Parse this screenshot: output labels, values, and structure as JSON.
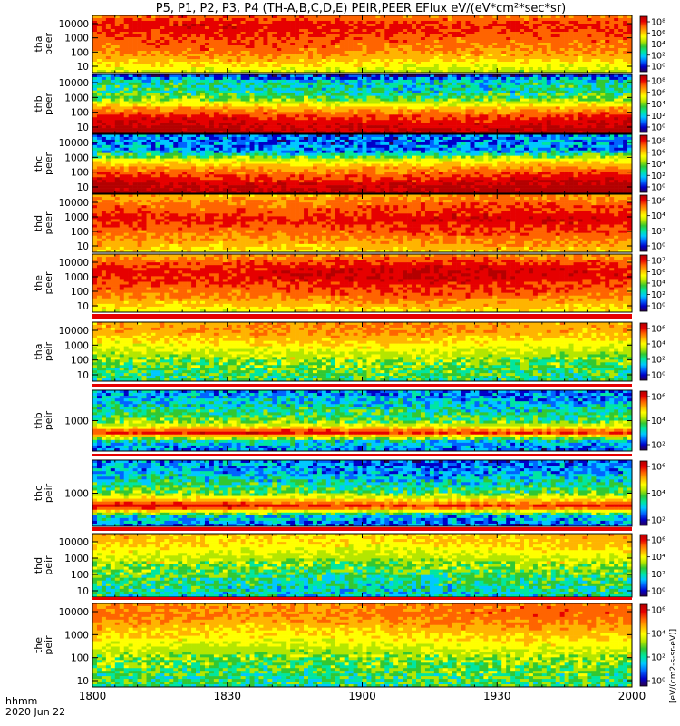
{
  "chart_data": {
    "type": "heatmap",
    "title": "P5, P1, P2, P3, P4 (TH-A,B,C,D,E) PEIR,PEER EFlux eV/(eV*cm²*sec*sr)",
    "x_ticks": [
      "1800",
      "1830",
      "1900",
      "1930",
      "2000"
    ],
    "x_label_lines": [
      "hhmm",
      "2020 Jun 22"
    ],
    "colorbar_unit": "[eV/(cm2-s-sr-eV)]",
    "colormap": [
      "#2b0050",
      "#0000c8",
      "#0064ff",
      "#00c8ff",
      "#00e6a0",
      "#32c832",
      "#b4e600",
      "#ffff00",
      "#ffb400",
      "#ff6400",
      "#e60000",
      "#b40000"
    ],
    "panels": [
      {
        "name": "tha peer",
        "label": [
          "tha",
          "peer"
        ],
        "y_ticks": [
          "10000",
          "1000",
          "100",
          "10"
        ],
        "cbar_ticks": [
          "10⁸",
          "10⁶",
          "10⁴",
          "10²",
          "10⁰"
        ],
        "profile": [
          {
            "log_e": 1.0,
            "level": 6.2
          },
          {
            "log_e": 1.5,
            "level": 7.2
          },
          {
            "log_e": 2.0,
            "level": 8.2
          },
          {
            "log_e": 2.5,
            "level": 8.8
          },
          {
            "log_e": 3.0,
            "level": 9.2
          },
          {
            "log_e": 3.5,
            "level": 9.6
          },
          {
            "log_e": 4.0,
            "level": 9.8
          },
          {
            "log_e": 4.5,
            "level": 8.6
          }
        ]
      },
      {
        "name": "thb peer",
        "label": [
          "thb",
          "peer"
        ],
        "y_ticks": [
          "10000",
          "1000",
          "100",
          "10"
        ],
        "cbar_ticks": [
          "10⁸",
          "10⁶",
          "10⁴",
          "10²",
          "10⁰"
        ],
        "profile": [
          {
            "log_e": 1.0,
            "level": 11.0
          },
          {
            "log_e": 1.5,
            "level": 10.4
          },
          {
            "log_e": 2.0,
            "level": 9.6
          },
          {
            "log_e": 2.5,
            "level": 8.0
          },
          {
            "log_e": 3.0,
            "level": 5.5
          },
          {
            "log_e": 3.5,
            "level": 4.0
          },
          {
            "log_e": 4.0,
            "level": 4.0
          },
          {
            "log_e": 4.5,
            "level": 1.0
          }
        ]
      },
      {
        "name": "thc peer",
        "label": [
          "thc",
          "peer"
        ],
        "y_ticks": [
          "10000",
          "1000",
          "100",
          "10"
        ],
        "cbar_ticks": [
          "10⁸",
          "10⁶",
          "10⁴",
          "10²",
          "10⁰"
        ],
        "profile": [
          {
            "log_e": 1.0,
            "level": 11.0
          },
          {
            "log_e": 1.5,
            "level": 10.6
          },
          {
            "log_e": 2.0,
            "level": 9.6
          },
          {
            "log_e": 2.5,
            "level": 8.4
          },
          {
            "log_e": 3.0,
            "level": 6.6
          },
          {
            "log_e": 3.5,
            "level": 2.6
          },
          {
            "log_e": 4.0,
            "level": 2.2
          },
          {
            "log_e": 4.5,
            "level": 2.2
          }
        ]
      },
      {
        "name": "thd peer",
        "label": [
          "thd",
          "peer"
        ],
        "y_ticks": [
          "10000",
          "1000",
          "100",
          "10"
        ],
        "cbar_ticks": [
          "10⁶",
          "10⁴",
          "10²",
          "10⁰"
        ],
        "profile": [
          {
            "log_e": 1.0,
            "level": 7.2
          },
          {
            "log_e": 1.5,
            "level": 8.2
          },
          {
            "log_e": 2.0,
            "level": 8.8
          },
          {
            "log_e": 2.5,
            "level": 9.4
          },
          {
            "log_e": 3.0,
            "level": 10.0
          },
          {
            "log_e": 3.5,
            "level": 9.4
          },
          {
            "log_e": 4.0,
            "level": 8.8
          },
          {
            "log_e": 4.5,
            "level": 8.0
          }
        ]
      },
      {
        "name": "the peer",
        "label": [
          "the",
          "peer"
        ],
        "y_ticks": [
          "10000",
          "1000",
          "100",
          "10"
        ],
        "cbar_ticks": [
          "10⁷",
          "10⁶",
          "10⁴",
          "10²",
          "10⁰"
        ],
        "profile": [
          {
            "log_e": 1.0,
            "level": 7.0
          },
          {
            "log_e": 1.5,
            "level": 8.0
          },
          {
            "log_e": 2.0,
            "level": 8.8
          },
          {
            "log_e": 2.5,
            "level": 9.4
          },
          {
            "log_e": 3.0,
            "level": 10.0
          },
          {
            "log_e": 3.5,
            "level": 10.2
          },
          {
            "log_e": 4.0,
            "level": 9.4
          },
          {
            "log_e": 4.5,
            "level": 8.2
          }
        ]
      },
      {
        "name": "tha peir",
        "label": [
          "tha",
          "peir"
        ],
        "y_ticks": [
          "10000",
          "1000",
          "100",
          "10"
        ],
        "cbar_ticks": [
          "10⁶",
          "10⁴",
          "10²",
          "10⁰"
        ],
        "profile": [
          {
            "log_e": 1.0,
            "level": 4.6
          },
          {
            "log_e": 1.5,
            "level": 4.8
          },
          {
            "log_e": 2.0,
            "level": 5.4
          },
          {
            "log_e": 2.5,
            "level": 6.0
          },
          {
            "log_e": 3.0,
            "level": 6.8
          },
          {
            "log_e": 3.5,
            "level": 7.6
          },
          {
            "log_e": 4.0,
            "level": 8.4
          },
          {
            "log_e": 4.5,
            "level": 8.2
          }
        ]
      },
      {
        "name": "thb peir",
        "label": [
          "thb",
          "peir"
        ],
        "y_ticks": [
          "1000"
        ],
        "cbar_ticks": [
          "10⁶",
          "10⁴",
          "10²"
        ],
        "profile": [
          {
            "log_e": 2.0,
            "level": 2.0
          },
          {
            "log_e": 2.3,
            "level": 3.4
          },
          {
            "log_e": 2.6,
            "level": 10.0
          },
          {
            "log_e": 2.8,
            "level": 7.0
          },
          {
            "log_e": 3.0,
            "level": 5.0
          },
          {
            "log_e": 3.3,
            "level": 4.2
          },
          {
            "log_e": 3.6,
            "level": 3.2
          },
          {
            "log_e": 4.0,
            "level": 2.2
          }
        ]
      },
      {
        "name": "thc peir",
        "label": [
          "thc",
          "peir"
        ],
        "y_ticks": [
          "1000"
        ],
        "cbar_ticks": [
          "10⁶",
          "10⁴",
          "10²"
        ],
        "profile": [
          {
            "log_e": 2.0,
            "level": 2.0
          },
          {
            "log_e": 2.3,
            "level": 3.2
          },
          {
            "log_e": 2.6,
            "level": 10.2
          },
          {
            "log_e": 2.8,
            "level": 7.6
          },
          {
            "log_e": 3.0,
            "level": 5.2
          },
          {
            "log_e": 3.3,
            "level": 4.0
          },
          {
            "log_e": 3.6,
            "level": 2.8
          },
          {
            "log_e": 4.0,
            "level": 2.0
          }
        ]
      },
      {
        "name": "thd peir",
        "label": [
          "thd",
          "peir"
        ],
        "y_ticks": [
          "10000",
          "1000",
          "100",
          "10"
        ],
        "cbar_ticks": [
          "10⁶",
          "10⁴",
          "10²",
          "10⁰"
        ],
        "profile": [
          {
            "log_e": 1.0,
            "level": 3.6
          },
          {
            "log_e": 1.5,
            "level": 4.0
          },
          {
            "log_e": 2.0,
            "level": 4.4
          },
          {
            "log_e": 2.5,
            "level": 5.2
          },
          {
            "log_e": 3.0,
            "level": 6.0
          },
          {
            "log_e": 3.5,
            "level": 6.8
          },
          {
            "log_e": 4.0,
            "level": 7.6
          },
          {
            "log_e": 4.5,
            "level": 7.8
          }
        ]
      },
      {
        "name": "the peir",
        "label": [
          "the",
          "peir"
        ],
        "y_ticks": [
          "10000",
          "1000",
          "100",
          "10"
        ],
        "cbar_ticks": [
          "10⁶",
          "10⁴",
          "10²",
          "10⁰"
        ],
        "profile": [
          {
            "log_e": 1.0,
            "level": 4.4
          },
          {
            "log_e": 1.5,
            "level": 4.8
          },
          {
            "log_e": 2.0,
            "level": 5.4
          },
          {
            "log_e": 2.5,
            "level": 6.2
          },
          {
            "log_e": 3.0,
            "level": 7.2
          },
          {
            "log_e": 3.5,
            "level": 8.0
          },
          {
            "log_e": 4.0,
            "level": 8.8
          },
          {
            "log_e": 4.5,
            "level": 8.6
          }
        ]
      }
    ]
  }
}
